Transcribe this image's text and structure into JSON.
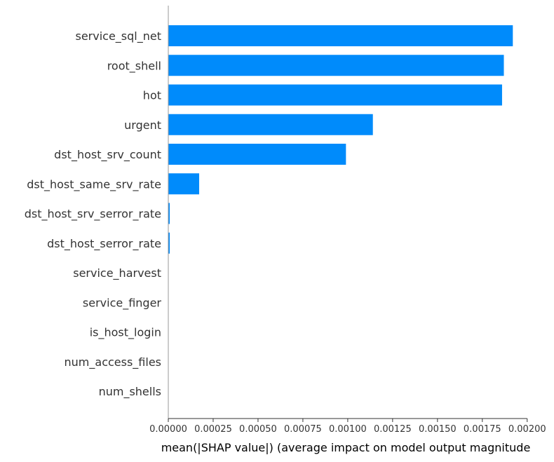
{
  "chart_data": {
    "type": "bar",
    "orientation": "horizontal",
    "categories": [
      "service_sql_net",
      "root_shell",
      "hot",
      "urgent",
      "dst_host_srv_count",
      "dst_host_same_srv_rate",
      "dst_host_srv_serror_rate",
      "dst_host_serror_rate",
      "service_harvest",
      "service_finger",
      "is_host_login",
      "num_access_files",
      "num_shells"
    ],
    "values": [
      0.00192,
      0.00187,
      0.00186,
      0.00114,
      0.00099,
      0.000172,
      8e-06,
      8e-06,
      0,
      0,
      0,
      0,
      0
    ],
    "xlabel": "mean(|SHAP value|) (average impact on model output magnitude",
    "ylabel": "",
    "title": "",
    "xlim": [
      0,
      0.00204
    ],
    "xticks": [
      0,
      0.00025,
      0.0005,
      0.00075,
      0.001,
      0.00125,
      0.0015,
      0.00175,
      0.002
    ],
    "xtick_labels": [
      "0.00000",
      "0.00025",
      "0.00050",
      "0.00075",
      "0.00100",
      "0.00125",
      "0.00150",
      "0.00175",
      "0.00200"
    ],
    "bar_color": "#008bfb",
    "axis_color": "#333333",
    "grid": false,
    "legend": "none"
  }
}
